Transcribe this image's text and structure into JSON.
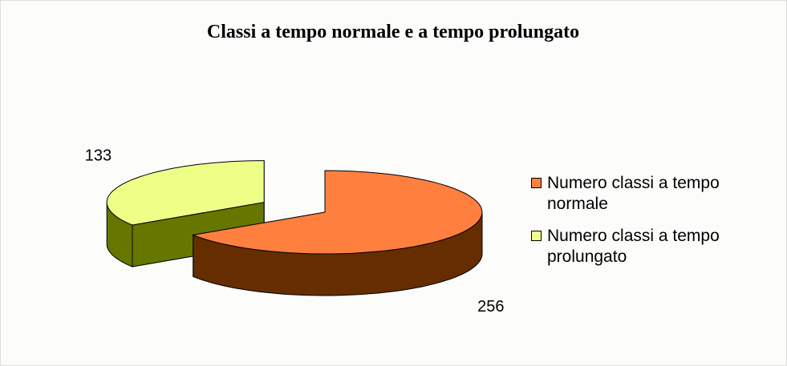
{
  "chart_data": {
    "type": "pie",
    "title": "Classi a tempo normale e a tempo prolungato",
    "labels": [
      "Numero classi a tempo normale",
      "Numero classi a tempo prolungato"
    ],
    "values": [
      256,
      133
    ],
    "colors": [
      "#ff7f3f",
      "#eeff88"
    ],
    "side_colors": [
      "#662e00",
      "#667700"
    ],
    "legend": "right"
  }
}
